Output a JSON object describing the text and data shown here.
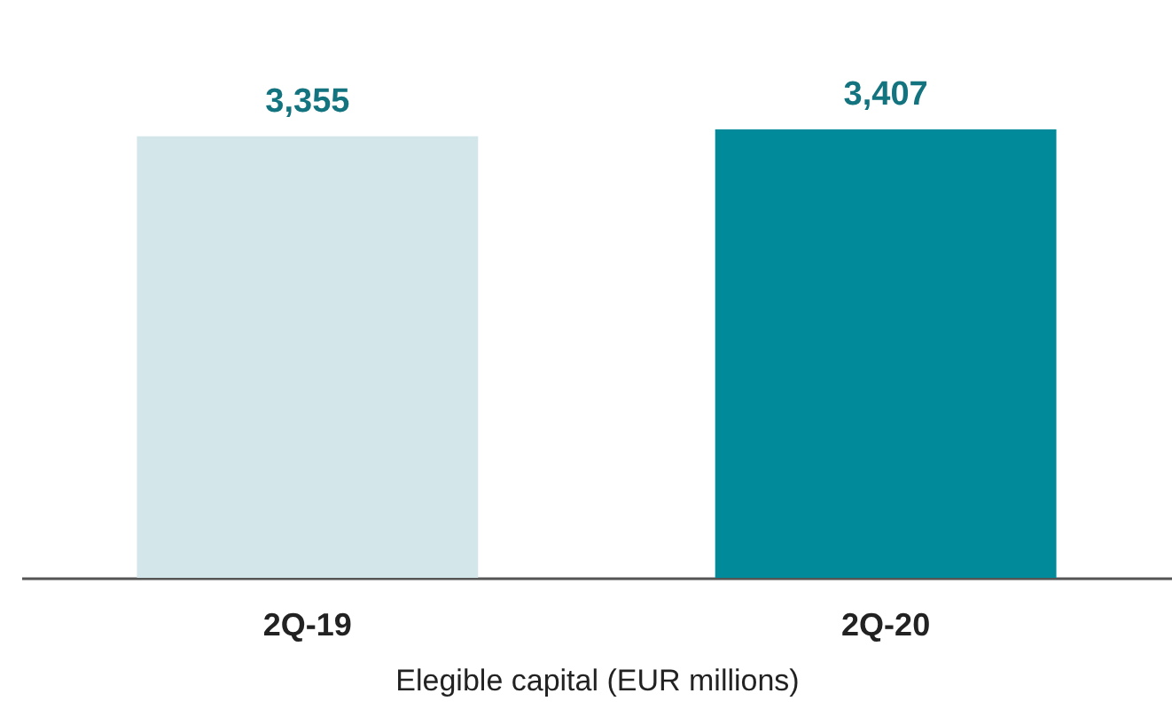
{
  "chart_data": {
    "type": "bar",
    "categories": [
      "2Q-19",
      "2Q-20"
    ],
    "values": [
      3355,
      3407
    ],
    "value_labels": [
      "3,355",
      "3,407"
    ],
    "colors": [
      "#d3e6e9",
      "#008a9a"
    ],
    "xlabel": "Elegible capital (EUR millions)",
    "tick_labels": "x"
  }
}
